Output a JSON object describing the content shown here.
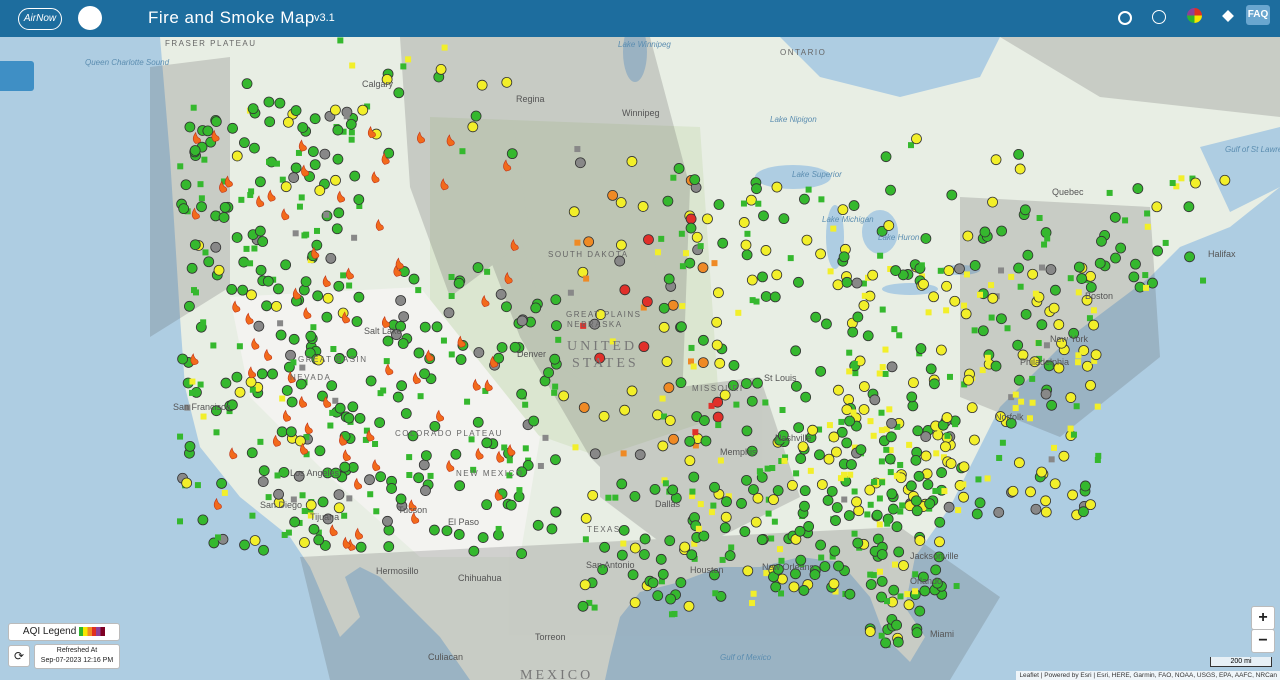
{
  "header": {
    "logo": "AirNow",
    "title": "Fire and Smoke Map",
    "version": "v3.1",
    "faq": "FAQ"
  },
  "map": {
    "labels": [
      "FRASER PLATEAU",
      "Queen Charlotte Sound",
      "Calgary",
      "Regina",
      "Winnipeg",
      "Lake Winnipeg",
      "ONTARIO",
      "Lake Nipigon",
      "Lake Superior",
      "Lake Michigan",
      "Lake Huron",
      "Quebec",
      "Gulf of St Lawrence",
      "Halifax",
      "Boston",
      "New York",
      "Philadelphia",
      "Norfolk",
      "Jacksonville",
      "Orlando",
      "Miami",
      "New Orleans",
      "Houston",
      "San Antonio",
      "Dallas",
      "Memphis",
      "Nashville",
      "St Louis",
      "Denver",
      "Salt Lake",
      "El Paso",
      "Tucson",
      "San Diego",
      "Tijuana",
      "Los Angeles",
      "San Francisco",
      "Hermosillo",
      "Chihuahua",
      "Torreon",
      "Culiacan",
      "Gulf of Mexico",
      "UNITED",
      "STATES",
      "MEXICO",
      "NEVADA",
      "NEW MEXICO",
      "TEXAS",
      "SOUTH DAKOTA",
      "NEBRASKA",
      "MISSOURI",
      "GREAT PLAINS",
      "COLORADO PLATEAU",
      "GREAT BASIN"
    ]
  },
  "legend": {
    "title": "AQI Legend",
    "refreshed_label": "Refreshed At",
    "refreshed_time": "Sep-07-2023 12:16 PM"
  },
  "zoom": {
    "in": "+",
    "out": "−"
  },
  "scale": "200 mi",
  "attribution": "Leaflet | Powered by Esri | Esri, HERE, Garmin, FAO, NOAA, USGS, EPA, AAFC, NRCan"
}
